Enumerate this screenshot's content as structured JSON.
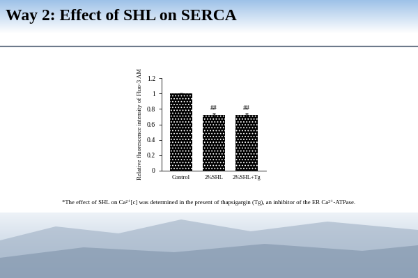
{
  "title": "Way 2: Effect of SHL on SERCA",
  "chart_data": {
    "type": "bar",
    "categories": [
      "Control",
      "2%SHL",
      "2%SHL+Tg"
    ],
    "values": [
      1,
      0.72,
      0.72
    ],
    "errors": [
      0,
      0.02,
      0.02
    ],
    "bar_annotations": [
      null,
      "##",
      "##"
    ],
    "color": "#000000",
    "y_label": "Relative fluorescence intensity of Fluo-3 AM",
    "ylim": [
      0,
      1.2
    ],
    "yticks": [
      0,
      0.2,
      0.4,
      0.6,
      0.8,
      1,
      1.2
    ],
    "grid": false,
    "caption": "*The effect of SHL on Ca²⁺[c] was determined in the present of thapsigargin (Tg), an inhibitor of the ER Ca²⁺-ATPase."
  }
}
